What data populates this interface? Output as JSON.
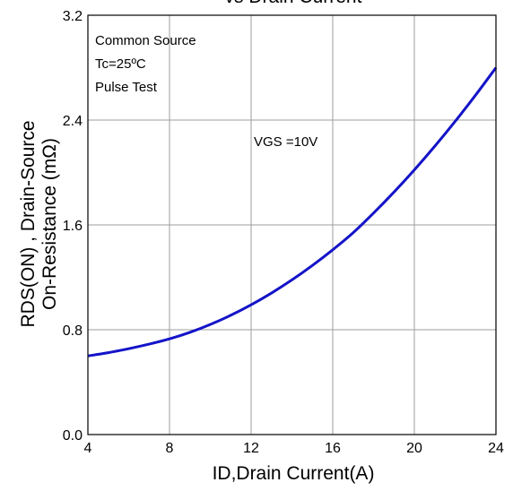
{
  "chart_data": {
    "type": "line",
    "title": "vs Drain Current",
    "xlabel": "ID,Drain Current(A)",
    "ylabel_lines": [
      "RDS(ON) , Drain-Source",
      "On-Resistance (mΩ)"
    ],
    "xlim": [
      4,
      24
    ],
    "ylim": [
      0.0,
      3.2
    ],
    "x_ticks": [
      "4",
      "8",
      "12",
      "16",
      "20",
      "24"
    ],
    "y_ticks": [
      "0.0",
      "0.8",
      "1.6",
      "2.4",
      "3.2"
    ],
    "grid": true,
    "annotations": [
      "Common Source",
      "Tc=25ºC",
      "Pulse Test"
    ],
    "series_label": "VGS =10V",
    "series": [
      {
        "color": "#1414c8",
        "x": [
          4,
          5,
          6,
          7,
          8,
          9,
          10,
          11,
          12,
          13,
          14,
          15,
          16,
          17,
          18,
          19,
          20,
          21,
          22,
          23,
          24
        ],
        "y": [
          0.6,
          0.625,
          0.655,
          0.69,
          0.73,
          0.78,
          0.84,
          0.91,
          0.99,
          1.08,
          1.18,
          1.29,
          1.41,
          1.54,
          1.69,
          1.85,
          2.02,
          2.2,
          2.39,
          2.59,
          2.8
        ]
      }
    ]
  }
}
